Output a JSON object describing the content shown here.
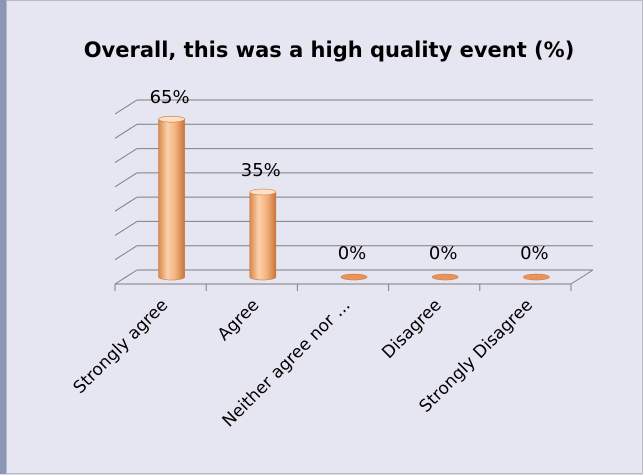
{
  "chart_data": {
    "type": "bar",
    "title": "Overall, this was a high quality event (%)",
    "categories": [
      "Strongly agree",
      "Agree",
      "Neither agree nor disagree",
      "Disagree",
      "Strongly Disagree"
    ],
    "category_labels_shown": [
      "Strongly agree",
      "Agree",
      "Neither agree nor ...",
      "Disagree",
      "Strongly Disagree"
    ],
    "values": [
      65,
      35,
      0,
      0,
      0
    ],
    "data_labels": [
      "65%",
      "35%",
      "0%",
      "0%",
      "0%"
    ],
    "ylim": [
      0,
      70
    ],
    "grid": true,
    "style": "3d-cylinder",
    "legend": "none",
    "colors": {
      "bar": "#f5b27f",
      "bar_dark": "#d9874a",
      "bar_light": "#fde0c6",
      "grid": "#808080",
      "background": "#e6e5f2"
    }
  }
}
